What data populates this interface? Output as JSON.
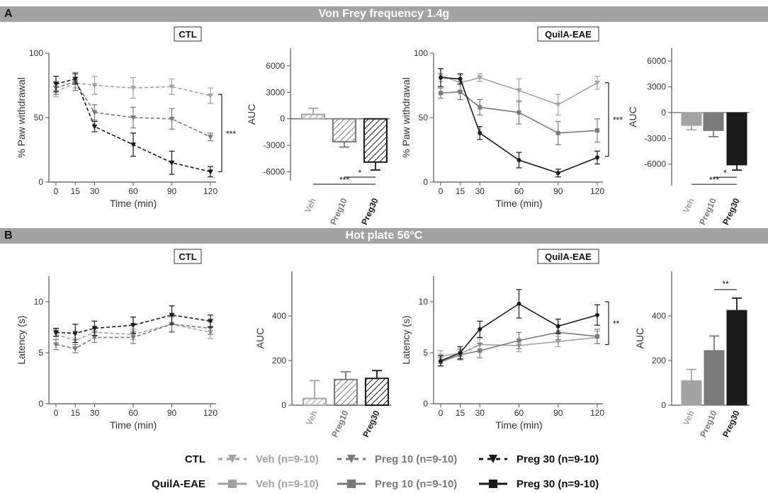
{
  "panels": {
    "a": {
      "letter": "A",
      "title": "Von Frey frequency 1.4g"
    },
    "b": {
      "letter": "B",
      "title": "Hot plate 56°C"
    }
  },
  "colors": {
    "veh": "#a3a3a3",
    "preg10": "#7a7a7a",
    "preg30": "#1a1a1a",
    "banner": "#a3a3a3"
  },
  "legend": {
    "rows": [
      {
        "group": "CTL",
        "style": "dashed",
        "entries": [
          {
            "key": "veh",
            "label": "Veh (n=9-10)"
          },
          {
            "key": "preg10",
            "label": "Preg 10 (n=9-10)"
          },
          {
            "key": "preg30",
            "label": "Preg 30 (n=9-10)"
          }
        ]
      },
      {
        "group": "QuilA-EAE",
        "style": "solid",
        "entries": [
          {
            "key": "veh",
            "label": "Veh (n=9-10)"
          },
          {
            "key": "preg10",
            "label": "Preg 10 (n=9-10)"
          },
          {
            "key": "preg30",
            "label": "Preg 30 (n=9-10)"
          }
        ]
      }
    ]
  },
  "chart_data": [
    {
      "id": "a-ctl-line",
      "type": "line",
      "group_label": "CTL",
      "style": "dashed",
      "marker": "triangle-down",
      "xlabel": "Time (min)",
      "ylabel": "% Paw withdrawal",
      "x": [
        0,
        15,
        30,
        60,
        90,
        120
      ],
      "xticks": [
        "0",
        "15",
        "30",
        "60",
        "90",
        "120"
      ],
      "ylim": [
        0,
        100
      ],
      "yticks": [
        0,
        50,
        100
      ],
      "series": [
        {
          "key": "veh",
          "name": "Veh",
          "values": [
            70,
            77,
            75,
            73,
            74,
            67
          ],
          "errors": [
            4,
            4,
            7,
            8,
            6,
            6
          ]
        },
        {
          "key": "preg10",
          "name": "Preg 10",
          "values": [
            73,
            78,
            54,
            50,
            49,
            35
          ],
          "errors": [
            5,
            7,
            6,
            8,
            8,
            3
          ]
        },
        {
          "key": "preg30",
          "name": "Preg 30",
          "values": [
            76,
            80,
            43,
            29,
            15,
            8
          ],
          "errors": [
            6,
            4,
            4,
            9,
            9,
            4
          ]
        }
      ],
      "bracket": {
        "from": 8,
        "to": 68,
        "label": "***"
      }
    },
    {
      "id": "a-ctl-auc",
      "type": "bar",
      "ylabel": "AUC",
      "ylim": [
        -7000,
        8000
      ],
      "yticks": [
        6000,
        3000,
        0,
        -3000,
        -6000
      ],
      "categories": [
        "Veh",
        "Preg10",
        "Preg30"
      ],
      "keys": [
        "veh",
        "preg10",
        "preg30"
      ],
      "fill": "hatch",
      "values": [
        500,
        -2600,
        -4900
      ],
      "errors": [
        700,
        600,
        900
      ],
      "significance": [
        {
          "from": 1,
          "to": 2,
          "label": "*"
        },
        {
          "from": 0,
          "to": 2,
          "label": "***"
        }
      ]
    },
    {
      "id": "a-eae-line",
      "type": "line",
      "group_label": "QuilA-EAE",
      "style": "solid",
      "marker": "mixed",
      "xlabel": "Time (min)",
      "ylabel": "% Paw withdrawal",
      "x": [
        0,
        15,
        30,
        60,
        90,
        120
      ],
      "xticks": [
        "0",
        "15",
        "30",
        "60",
        "90",
        "120"
      ],
      "ylim": [
        0,
        100
      ],
      "yticks": [
        0,
        50,
        100
      ],
      "series": [
        {
          "key": "veh",
          "name": "Veh",
          "values": [
            83,
            77,
            81,
            71,
            60,
            77
          ],
          "errors": [
            5,
            6,
            3,
            9,
            8,
            5
          ]
        },
        {
          "key": "preg10",
          "name": "Preg 10",
          "values": [
            69,
            70,
            58,
            54,
            38,
            40
          ],
          "errors": [
            4,
            6,
            6,
            9,
            9,
            9
          ]
        },
        {
          "key": "preg30",
          "name": "Preg 30",
          "values": [
            81,
            80,
            38,
            17,
            7,
            19
          ],
          "errors": [
            7,
            4,
            5,
            6,
            3,
            5
          ]
        }
      ],
      "bracket": {
        "from": 20,
        "to": 77,
        "label": "***"
      }
    },
    {
      "id": "a-eae-auc",
      "type": "bar",
      "ylabel": "AUC",
      "ylim": [
        -8500,
        7500
      ],
      "yticks": [
        6000,
        3000,
        0,
        -3000,
        -6000
      ],
      "categories": [
        "Veh",
        "Preg10",
        "Preg30"
      ],
      "keys": [
        "veh",
        "preg10",
        "preg30"
      ],
      "fill": "solid",
      "values": [
        -1500,
        -2100,
        -6100
      ],
      "errors": [
        500,
        700,
        600
      ],
      "significance": [
        {
          "from": 1,
          "to": 2,
          "label": "*"
        },
        {
          "from": 0,
          "to": 2,
          "label": "***"
        }
      ]
    },
    {
      "id": "b-ctl-line",
      "type": "line",
      "group_label": "CTL",
      "style": "dashed",
      "marker": "triangle-down",
      "xlabel": "Time (min)",
      "ylabel": "Latency (s)",
      "x": [
        0,
        15,
        30,
        60,
        90,
        120
      ],
      "xticks": [
        "0",
        "15",
        "30",
        "60",
        "90",
        "120"
      ],
      "ylim": [
        0,
        12.5
      ],
      "yticks": [
        0,
        5,
        10
      ],
      "series": [
        {
          "key": "veh",
          "name": "Veh",
          "values": [
            6.8,
            6.2,
            7.0,
            6.8,
            7.8,
            7.0
          ],
          "errors": [
            0.5,
            0.6,
            0.6,
            0.5,
            0.7,
            0.6
          ]
        },
        {
          "key": "preg10",
          "name": "Preg 10",
          "values": [
            5.8,
            5.4,
            6.5,
            6.5,
            7.8,
            7.4
          ],
          "errors": [
            0.5,
            0.4,
            0.5,
            0.6,
            0.8,
            0.6
          ]
        },
        {
          "key": "preg30",
          "name": "Preg 30",
          "values": [
            7.0,
            6.9,
            7.4,
            7.7,
            8.7,
            8.1
          ],
          "errors": [
            0.4,
            0.9,
            0.7,
            0.8,
            0.9,
            0.6
          ]
        }
      ]
    },
    {
      "id": "b-ctl-auc",
      "type": "bar",
      "ylabel": "AUC",
      "ylim": [
        0,
        600
      ],
      "yticks": [
        0,
        200,
        400
      ],
      "categories": [
        "Veh",
        "Preg10",
        "Preg30"
      ],
      "keys": [
        "veh",
        "preg10",
        "preg30"
      ],
      "fill": "hatch",
      "values": [
        30,
        115,
        120
      ],
      "errors": [
        80,
        35,
        35
      ],
      "significance": []
    },
    {
      "id": "b-eae-line",
      "type": "line",
      "group_label": "QuilA-EAE",
      "style": "solid",
      "marker": "mixed",
      "xlabel": "Time (min)",
      "ylabel": "Latency (s)",
      "x": [
        0,
        15,
        30,
        60,
        90,
        120
      ],
      "xticks": [
        "0",
        "15",
        "30",
        "60",
        "90",
        "120"
      ],
      "ylim": [
        0,
        12.5
      ],
      "yticks": [
        0,
        5,
        10
      ],
      "series": [
        {
          "key": "veh",
          "name": "Veh",
          "values": [
            4.7,
            4.9,
            5.8,
            5.7,
            6.1,
            6.5
          ],
          "errors": [
            0.5,
            0.5,
            0.6,
            0.6,
            0.5,
            0.6
          ]
        },
        {
          "key": "preg10",
          "name": "Preg 10",
          "values": [
            4.1,
            4.8,
            5.2,
            6.2,
            7.0,
            6.6
          ],
          "errors": [
            0.4,
            0.5,
            0.7,
            0.8,
            0.7,
            0.7
          ]
        },
        {
          "key": "preg30",
          "name": "Preg 30",
          "values": [
            4.2,
            5.0,
            7.3,
            9.8,
            7.6,
            8.7
          ],
          "errors": [
            0.5,
            0.6,
            0.8,
            1.4,
            0.7,
            1.0
          ]
        }
      ],
      "bracket": {
        "from": 5.8,
        "to": 10.0,
        "label": "**"
      }
    },
    {
      "id": "b-eae-auc",
      "type": "bar",
      "ylabel": "AUC",
      "ylim": [
        0,
        600
      ],
      "yticks": [
        0,
        200,
        400
      ],
      "categories": [
        "Veh",
        "Preg10",
        "Preg30"
      ],
      "keys": [
        "veh",
        "preg10",
        "preg30"
      ],
      "fill": "solid",
      "values": [
        110,
        245,
        425
      ],
      "errors": [
        50,
        65,
        55
      ],
      "significance": [
        {
          "from": 1,
          "to": 2,
          "label": "**"
        }
      ]
    }
  ]
}
